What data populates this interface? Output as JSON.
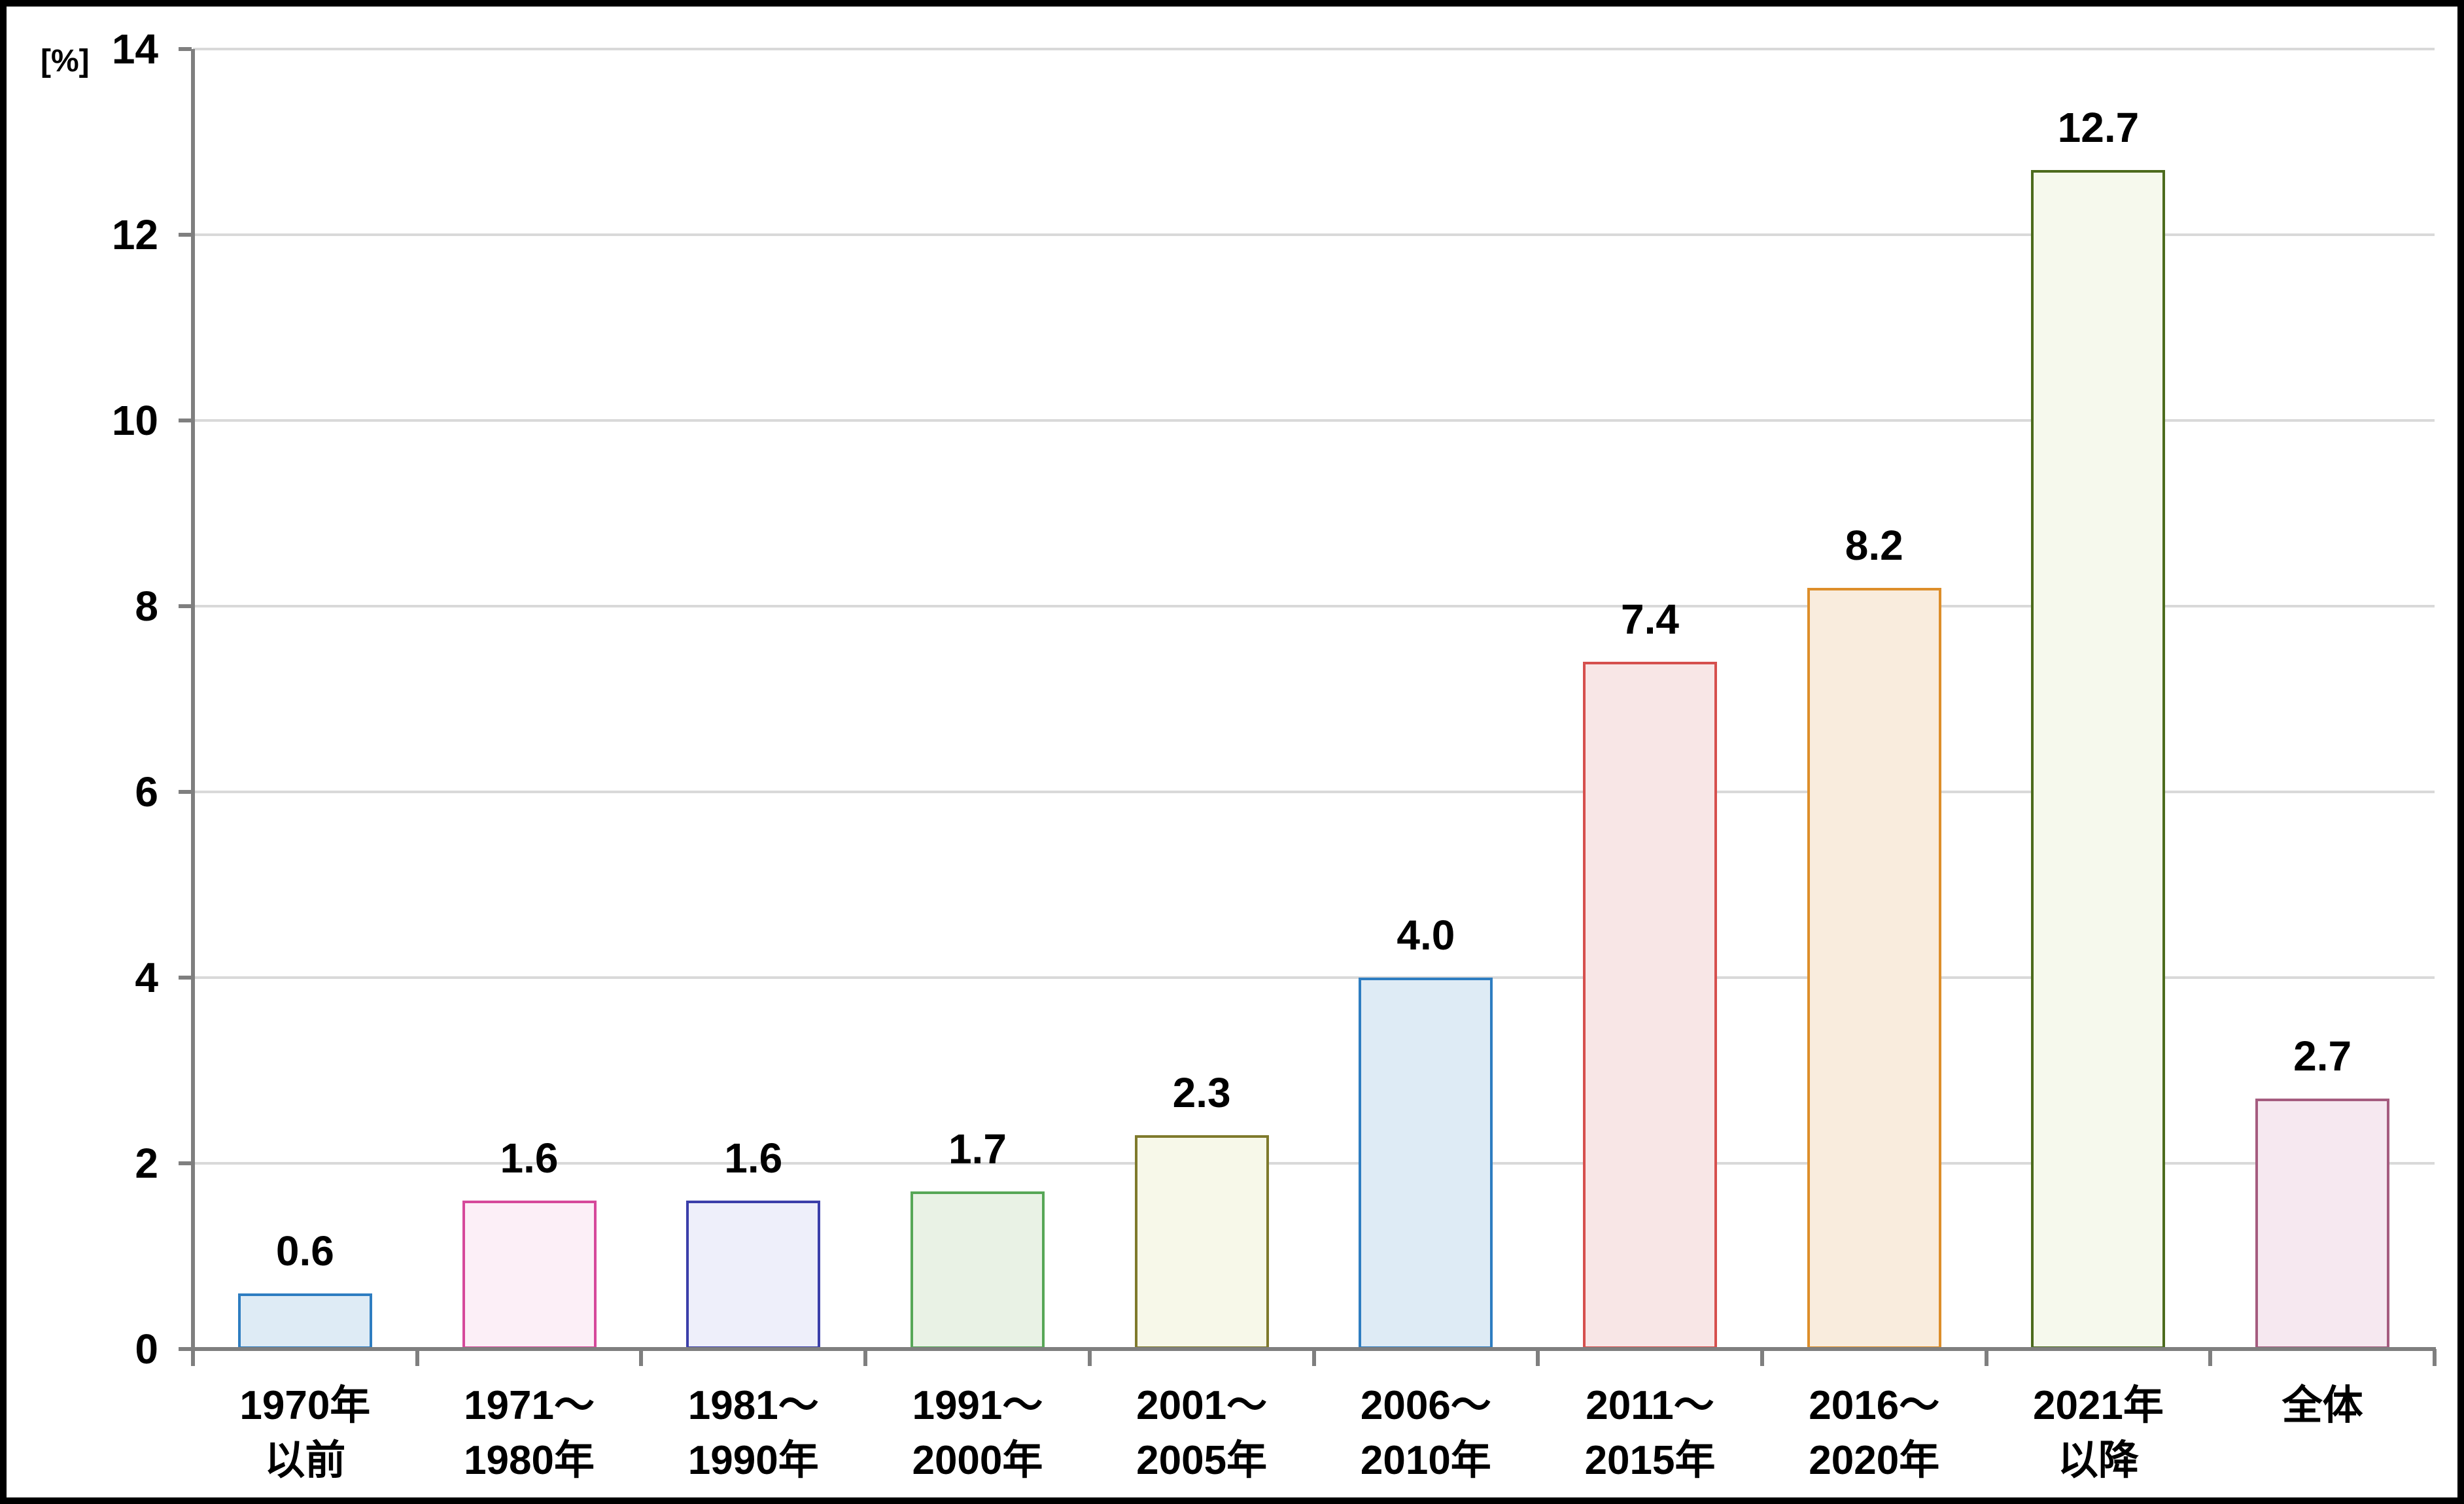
{
  "chart_data": {
    "type": "bar",
    "title": "",
    "xlabel": "",
    "ylabel": "",
    "unit_label": "[%]",
    "ylim": [
      0,
      14
    ],
    "y_ticks": [
      0,
      2,
      4,
      6,
      8,
      10,
      12,
      14
    ],
    "grid": true,
    "legend_position": "none",
    "categories": [
      "1970年以前",
      "1971〜1980年",
      "1981〜1990年",
      "1991〜2000年",
      "2001〜2005年",
      "2006〜2010年",
      "2011〜2015年",
      "2016〜2020年",
      "2021年以降",
      "全体"
    ],
    "category_label_lines": [
      [
        "1970年",
        "以前"
      ],
      [
        "1971〜",
        "1980年"
      ],
      [
        "1981〜",
        "1990年"
      ],
      [
        "1991〜",
        "2000年"
      ],
      [
        "2001〜",
        "2005年"
      ],
      [
        "2006〜",
        "2010年"
      ],
      [
        "2011〜",
        "2015年"
      ],
      [
        "2016〜",
        "2020年"
      ],
      [
        "2021年",
        "以降"
      ],
      [
        "全体"
      ]
    ],
    "values": [
      0.6,
      1.6,
      1.6,
      1.7,
      2.3,
      4.0,
      7.4,
      8.2,
      12.7,
      2.7
    ],
    "value_labels": [
      "0.6",
      "1.6",
      "1.6",
      "1.7",
      "2.3",
      "4.0",
      "7.4",
      "8.2",
      "12.7",
      "2.7"
    ],
    "bar_colors": [
      {
        "border": "#2E7DC1",
        "fill": "#DEEBF5"
      },
      {
        "border": "#D6499B",
        "fill": "#FCEFF7"
      },
      {
        "border": "#3B3FAA",
        "fill": "#EEEFFA"
      },
      {
        "border": "#57A757",
        "fill": "#E9F2E5"
      },
      {
        "border": "#7F7A2C",
        "fill": "#F7F8E9"
      },
      {
        "border": "#2E7DC1",
        "fill": "#DEEBF5"
      },
      {
        "border": "#D6504E",
        "fill": "#F8E6E6"
      },
      {
        "border": "#DD8E2A",
        "fill": "#F9ECDD"
      },
      {
        "border": "#4C6B1D",
        "fill": "#F6F9ED"
      },
      {
        "border": "#A55C7F",
        "fill": "#F6E8F0"
      }
    ],
    "axis_color": "#7F7F7F",
    "grid_color": "#D9D9D9",
    "text_color": "#000000"
  }
}
